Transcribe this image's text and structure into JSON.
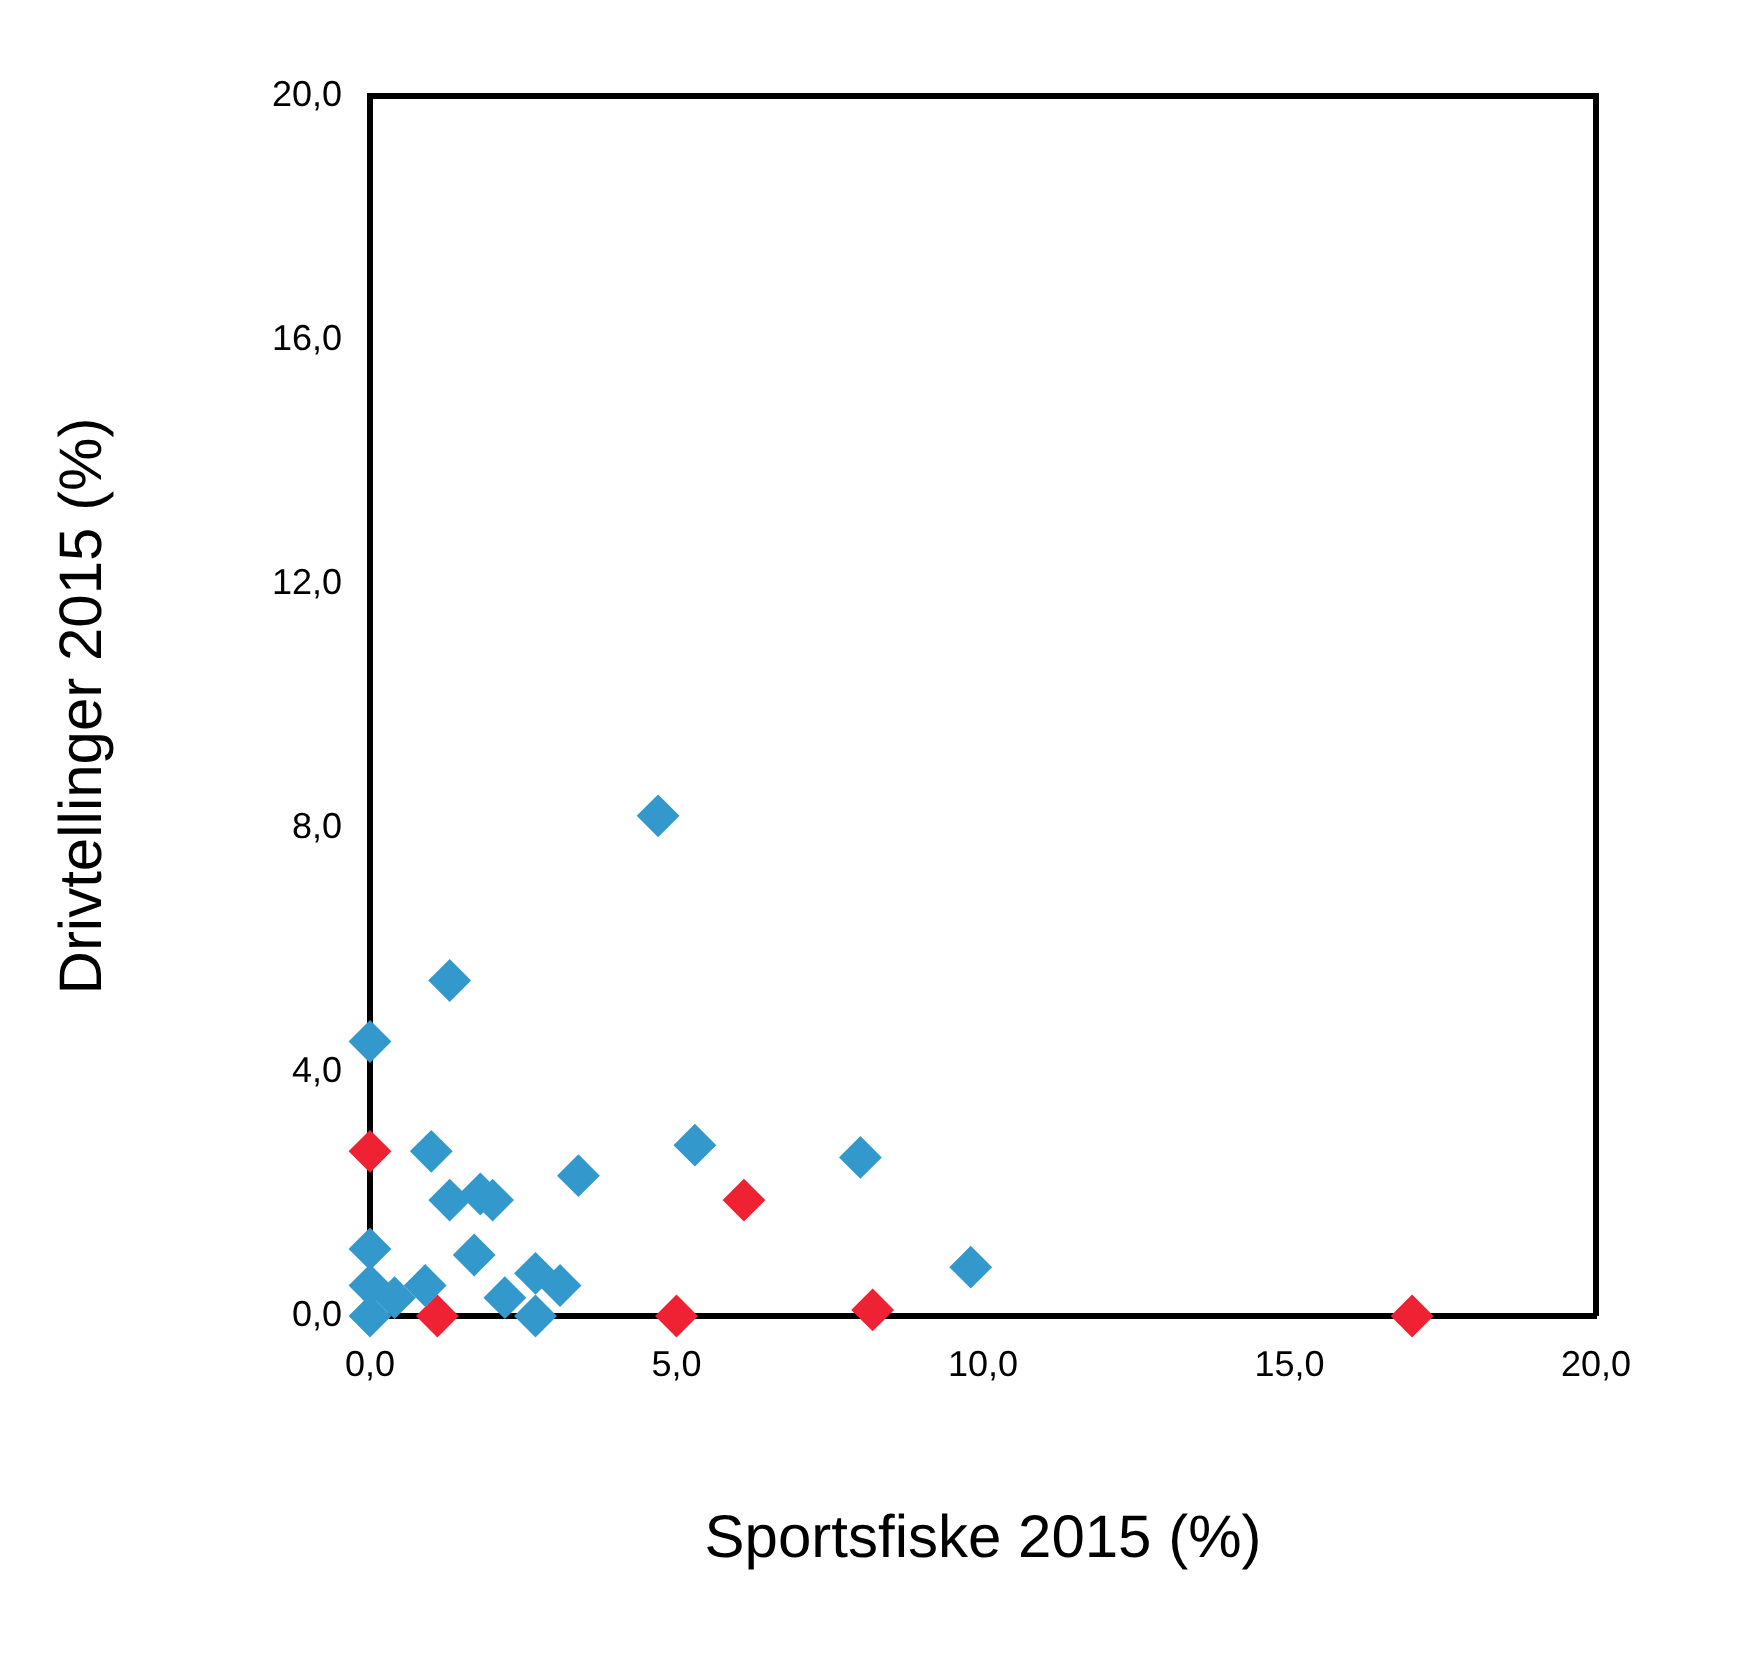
{
  "chart_data": {
    "type": "scatter",
    "xlabel": "Sportsfiske 2015 (%)",
    "ylabel": "Drivtellinger 2015 (%)",
    "marker": "diamond",
    "grid": false,
    "legend": false,
    "xlim": [
      0,
      20
    ],
    "xticks": [
      {
        "value": 0,
        "label": "0,0"
      },
      {
        "value": 5,
        "label": "5,0"
      },
      {
        "value": 10,
        "label": "10,0"
      },
      {
        "value": 15,
        "label": "15,0"
      },
      {
        "value": 20,
        "label": "20,0"
      }
    ],
    "ylim": [
      0,
      20
    ],
    "yticks": [
      {
        "value": 0,
        "label": "0,0"
      },
      {
        "value": 4,
        "label": "4,0"
      },
      {
        "value": 8,
        "label": "8,0"
      },
      {
        "value": 12,
        "label": "12,0"
      },
      {
        "value": 16,
        "label": "16,0"
      },
      {
        "value": 20,
        "label": "20,0"
      }
    ],
    "series": [
      {
        "color": "#3399cc",
        "x": [
          4.7,
          1.3,
          0.0,
          1.0,
          5.3,
          8.0,
          3.4,
          1.3,
          1.8,
          2.0,
          1.7,
          0.0,
          0.0,
          0.9,
          2.7,
          3.1,
          2.2,
          2.7,
          9.8,
          0.0,
          0.4
        ],
        "values": [
          8.2,
          5.5,
          4.5,
          2.7,
          2.8,
          2.6,
          2.3,
          1.9,
          2.0,
          1.9,
          1.0,
          1.1,
          0.5,
          0.5,
          0.7,
          0.5,
          0.3,
          0.0,
          0.8,
          0.0,
          0.3
        ]
      },
      {
        "color": "#ee2233",
        "x": [
          0.0,
          1.1,
          5.0,
          6.1,
          8.2,
          17.0
        ],
        "values": [
          2.7,
          0.0,
          0.0,
          1.9,
          0.1,
          0.0
        ]
      }
    ]
  }
}
